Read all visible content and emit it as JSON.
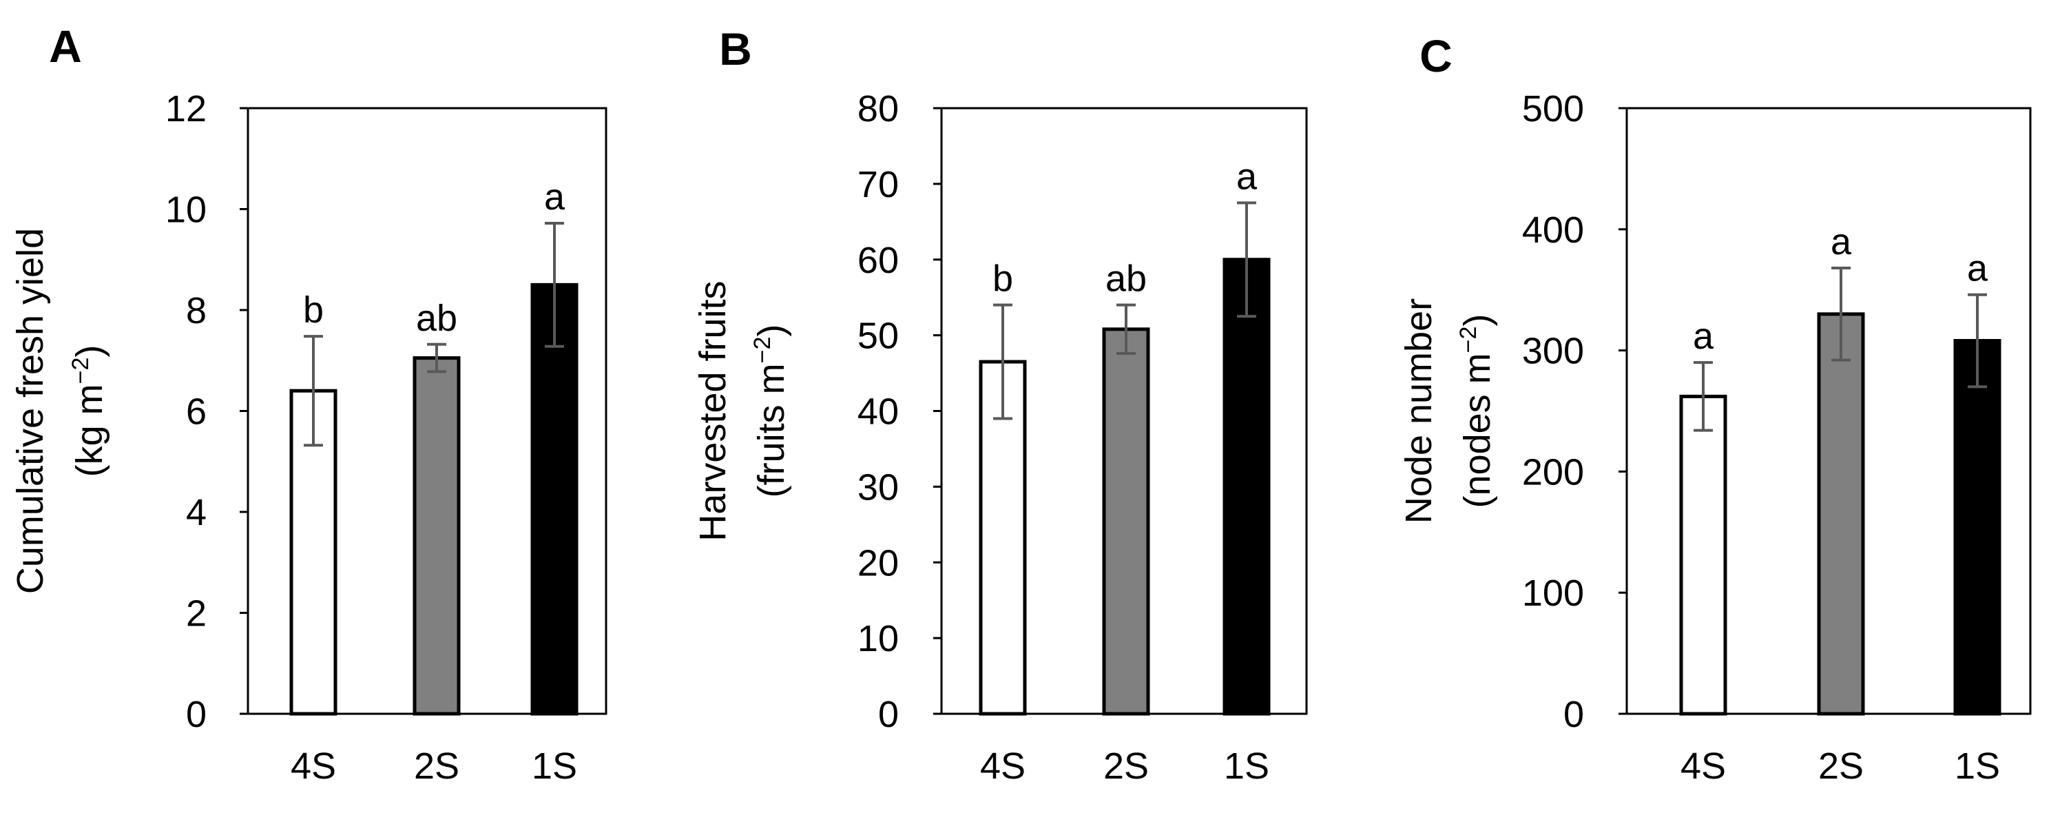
{
  "figure": {
    "panels": [
      "A",
      "B",
      "C"
    ]
  },
  "colors": {
    "4S": "#ffffff",
    "2S": "#808080",
    "1S": "#000000",
    "axis": "#000000",
    "error_bar": "#595959"
  },
  "chart_data": [
    {
      "type": "bar",
      "panel": "A",
      "categories": [
        "4S",
        "2S",
        "1S"
      ],
      "values": [
        6.4,
        7.05,
        8.5
      ],
      "errors": [
        1.08,
        0.27,
        1.22
      ],
      "letters": [
        "b",
        "ab",
        "a"
      ],
      "ylabel_line1": "Cumulative fresh yield",
      "ylabel_unit": "(kg m",
      "ylabel_exp": "−2",
      "ylabel_close": ")",
      "ylim": [
        0,
        12
      ],
      "yticks": [
        0,
        2,
        4,
        6,
        8,
        10,
        12
      ],
      "xlabel": "",
      "grid": false
    },
    {
      "type": "bar",
      "panel": "B",
      "categories": [
        "4S",
        "2S",
        "1S"
      ],
      "values": [
        46.5,
        50.8,
        60
      ],
      "errors": [
        7.5,
        3.2,
        7.5
      ],
      "letters": [
        "b",
        "ab",
        "a"
      ],
      "ylabel_line1": "Harvested fruits",
      "ylabel_unit": "(fruits m",
      "ylabel_exp": "−2",
      "ylabel_close": ")",
      "ylim": [
        0,
        80
      ],
      "yticks": [
        0,
        10,
        20,
        30,
        40,
        50,
        60,
        70,
        80
      ],
      "xlabel": "",
      "grid": false
    },
    {
      "type": "bar",
      "panel": "C",
      "categories": [
        "4S",
        "2S",
        "1S"
      ],
      "values": [
        262,
        330,
        308
      ],
      "errors": [
        28,
        38,
        38
      ],
      "letters": [
        "a",
        "a",
        "a"
      ],
      "ylabel_line1": "Node number",
      "ylabel_unit": "(nodes m",
      "ylabel_exp": "−2",
      "ylabel_close": ")",
      "ylim": [
        0,
        500
      ],
      "yticks": [
        0,
        100,
        200,
        300,
        400,
        500
      ],
      "xlabel": "",
      "grid": false
    }
  ]
}
